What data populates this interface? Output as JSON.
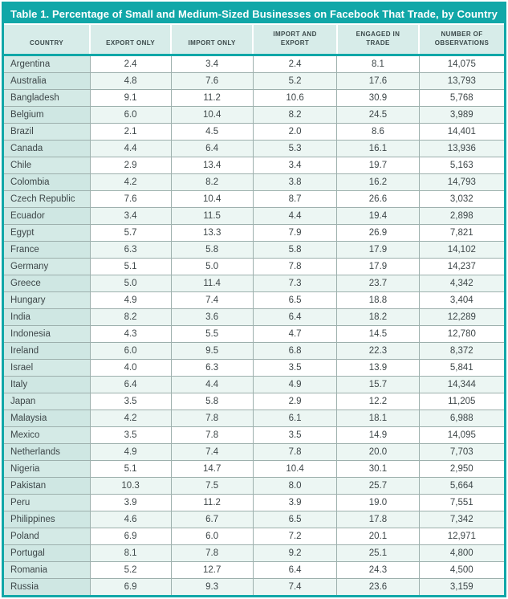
{
  "table": {
    "title": "Table 1. Percentage of Small and Medium-Sized Businesses on Facebook That Trade, by Country",
    "columns": [
      "COUNTRY",
      "EXPORT ONLY",
      "IMPORT ONLY",
      "IMPORT AND\nEXPORT",
      "ENGAGED IN\nTRADE",
      "NUMBER OF\nOBSERVATIONS"
    ],
    "rows": [
      [
        "Argentina",
        "2.4",
        "3.4",
        "2.4",
        "8.1",
        "14,075"
      ],
      [
        "Australia",
        "4.8",
        "7.6",
        "5.2",
        "17.6",
        "13,793"
      ],
      [
        "Bangladesh",
        "9.1",
        "11.2",
        "10.6",
        "30.9",
        "5,768"
      ],
      [
        "Belgium",
        "6.0",
        "10.4",
        "8.2",
        "24.5",
        "3,989"
      ],
      [
        "Brazil",
        "2.1",
        "4.5",
        "2.0",
        "8.6",
        "14,401"
      ],
      [
        "Canada",
        "4.4",
        "6.4",
        "5.3",
        "16.1",
        "13,936"
      ],
      [
        "Chile",
        "2.9",
        "13.4",
        "3.4",
        "19.7",
        "5,163"
      ],
      [
        "Colombia",
        "4.2",
        "8.2",
        "3.8",
        "16.2",
        "14,793"
      ],
      [
        "Czech Republic",
        "7.6",
        "10.4",
        "8.7",
        "26.6",
        "3,032"
      ],
      [
        "Ecuador",
        "3.4",
        "11.5",
        "4.4",
        "19.4",
        "2,898"
      ],
      [
        "Egypt",
        "5.7",
        "13.3",
        "7.9",
        "26.9",
        "7,821"
      ],
      [
        "France",
        "6.3",
        "5.8",
        "5.8",
        "17.9",
        "14,102"
      ],
      [
        "Germany",
        "5.1",
        "5.0",
        "7.8",
        "17.9",
        "14,237"
      ],
      [
        "Greece",
        "5.0",
        "11.4",
        "7.3",
        "23.7",
        "4,342"
      ],
      [
        "Hungary",
        "4.9",
        "7.4",
        "6.5",
        "18.8",
        "3,404"
      ],
      [
        "India",
        "8.2",
        "3.6",
        "6.4",
        "18.2",
        "12,289"
      ],
      [
        "Indonesia",
        "4.3",
        "5.5",
        "4.7",
        "14.5",
        "12,780"
      ],
      [
        "Ireland",
        "6.0",
        "9.5",
        "6.8",
        "22.3",
        "8,372"
      ],
      [
        "Israel",
        "4.0",
        "6.3",
        "3.5",
        "13.9",
        "5,841"
      ],
      [
        "Italy",
        "6.4",
        "4.4",
        "4.9",
        "15.7",
        "14,344"
      ],
      [
        "Japan",
        "3.5",
        "5.8",
        "2.9",
        "12.2",
        "11,205"
      ],
      [
        "Malaysia",
        "4.2",
        "7.8",
        "6.1",
        "18.1",
        "6,988"
      ],
      [
        "Mexico",
        "3.5",
        "7.8",
        "3.5",
        "14.9",
        "14,095"
      ],
      [
        "Netherlands",
        "4.9",
        "7.4",
        "7.8",
        "20.0",
        "7,703"
      ],
      [
        "Nigeria",
        "5.1",
        "14.7",
        "10.4",
        "30.1",
        "2,950"
      ],
      [
        "Pakistan",
        "10.3",
        "7.5",
        "8.0",
        "25.7",
        "5,664"
      ],
      [
        "Peru",
        "3.9",
        "11.2",
        "3.9",
        "19.0",
        "7,551"
      ],
      [
        "Philippines",
        "4.6",
        "6.7",
        "6.5",
        "17.8",
        "7,342"
      ],
      [
        "Poland",
        "6.9",
        "6.0",
        "7.2",
        "20.1",
        "12,971"
      ],
      [
        "Portugal",
        "8.1",
        "7.8",
        "9.2",
        "25.1",
        "4,800"
      ],
      [
        "Romania",
        "5.2",
        "12.7",
        "6.4",
        "24.3",
        "4,500"
      ],
      [
        "Russia",
        "6.9",
        "9.3",
        "7.4",
        "23.6",
        "3,159"
      ]
    ]
  },
  "colors": {
    "accent_teal": "#11a7a8",
    "header_bg": "#d7ece9",
    "country_col_bg": "#d4eae6",
    "alt_row_bg": "#ecf6f3",
    "grid_line": "#9db0ad",
    "body_text": "#3e4749",
    "title_text": "#ffffff"
  }
}
